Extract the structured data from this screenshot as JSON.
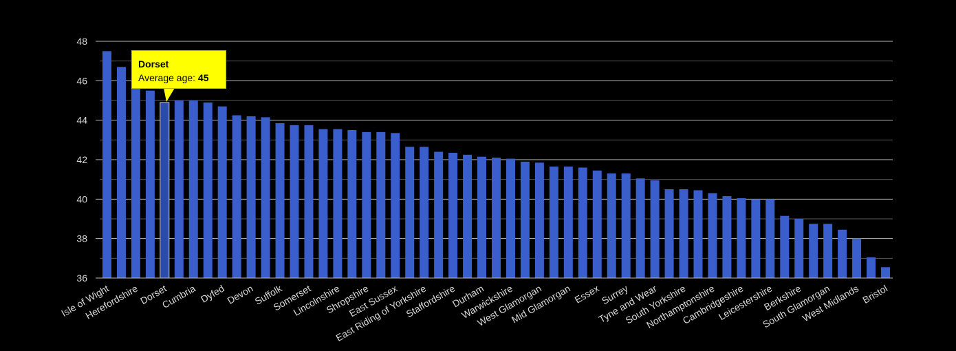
{
  "chart_data": {
    "type": "bar",
    "ylim": [
      36,
      48
    ],
    "yticks": [
      36,
      38,
      40,
      42,
      44,
      46,
      48
    ],
    "grid": true,
    "bar_color": "#3a5fcd",
    "highlight_color": "#2a4aad",
    "categories": [
      "Isle of Wight",
      "",
      "Herefordshire",
      "",
      "Dorset",
      "",
      "Cumbria",
      "",
      "Dyfed",
      "",
      "Devon",
      "",
      "Suffolk",
      "",
      "Somerset",
      "",
      "Lincolnshire",
      "",
      "Shropshire",
      "",
      "East Sussex",
      "",
      "East Riding of Yorkshire",
      "",
      "Staffordshire",
      "",
      "Durham",
      "",
      "Warwickshire",
      "",
      "West Glamorgan",
      "",
      "Mid Glamorgan",
      "",
      "Essex",
      "",
      "Surrey",
      "",
      "Tyne and Wear",
      "",
      "South Yorkshire",
      "",
      "Northamptonshire",
      "",
      "Cambridgeshire",
      "",
      "Leicestershire",
      "",
      "Berkshire",
      "",
      "South Glamorgan",
      "",
      "West Midlands",
      "",
      "Bristol"
    ],
    "values": [
      47.5,
      46.7,
      45.9,
      45.5,
      44.9,
      45.0,
      45.0,
      44.9,
      44.7,
      44.25,
      44.2,
      44.15,
      43.85,
      43.75,
      43.75,
      43.55,
      43.55,
      43.5,
      43.4,
      43.4,
      43.35,
      42.65,
      42.65,
      42.4,
      42.35,
      42.25,
      42.15,
      42.1,
      42.05,
      41.9,
      41.85,
      41.65,
      41.65,
      41.6,
      41.45,
      41.3,
      41.3,
      41.05,
      40.95,
      40.5,
      40.5,
      40.45,
      40.3,
      40.15,
      40.05,
      40.0,
      40.0,
      39.15,
      39.0,
      38.75,
      38.75,
      38.45,
      38.0,
      37.05,
      36.55
    ],
    "highlight_index": 4,
    "tooltip": {
      "title": "Dorset",
      "label": "Average age: ",
      "value": "45"
    }
  }
}
